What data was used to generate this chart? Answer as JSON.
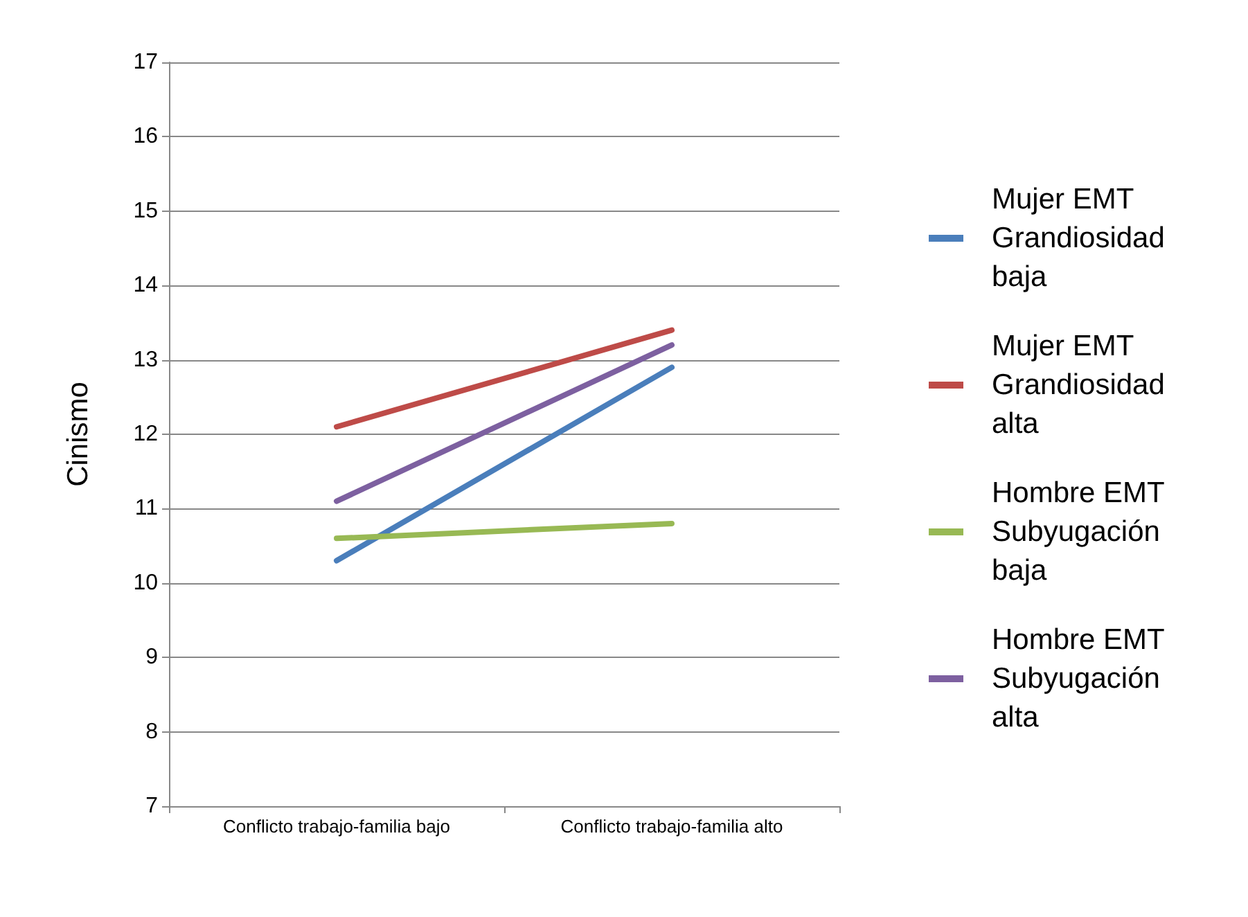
{
  "chart_data": {
    "type": "line",
    "ylabel": "Cinismo",
    "categories": [
      "Conflicto trabajo-familia bajo",
      "Conflicto trabajo-familia alto"
    ],
    "series": [
      {
        "name": "Mujer EMT Grandiosidad baja",
        "color": "#4a7ebb",
        "values": [
          10.3,
          12.9
        ]
      },
      {
        "name": "Mujer EMT Grandiosidad alta",
        "color": "#be4b48",
        "values": [
          12.1,
          13.4
        ]
      },
      {
        "name": "Hombre EMT Subyugación baja",
        "color": "#98b954",
        "values": [
          10.6,
          10.8
        ]
      },
      {
        "name": "Hombre EMT Subyugación alta",
        "color": "#7d60a0",
        "values": [
          11.1,
          13.2
        ]
      }
    ],
    "ylim": [
      7,
      17
    ],
    "yticks": [
      7,
      8,
      9,
      10,
      11,
      12,
      13,
      14,
      15,
      16,
      17
    ],
    "grid": "y",
    "legend": "right",
    "marker": "none",
    "line_style": "solid"
  }
}
